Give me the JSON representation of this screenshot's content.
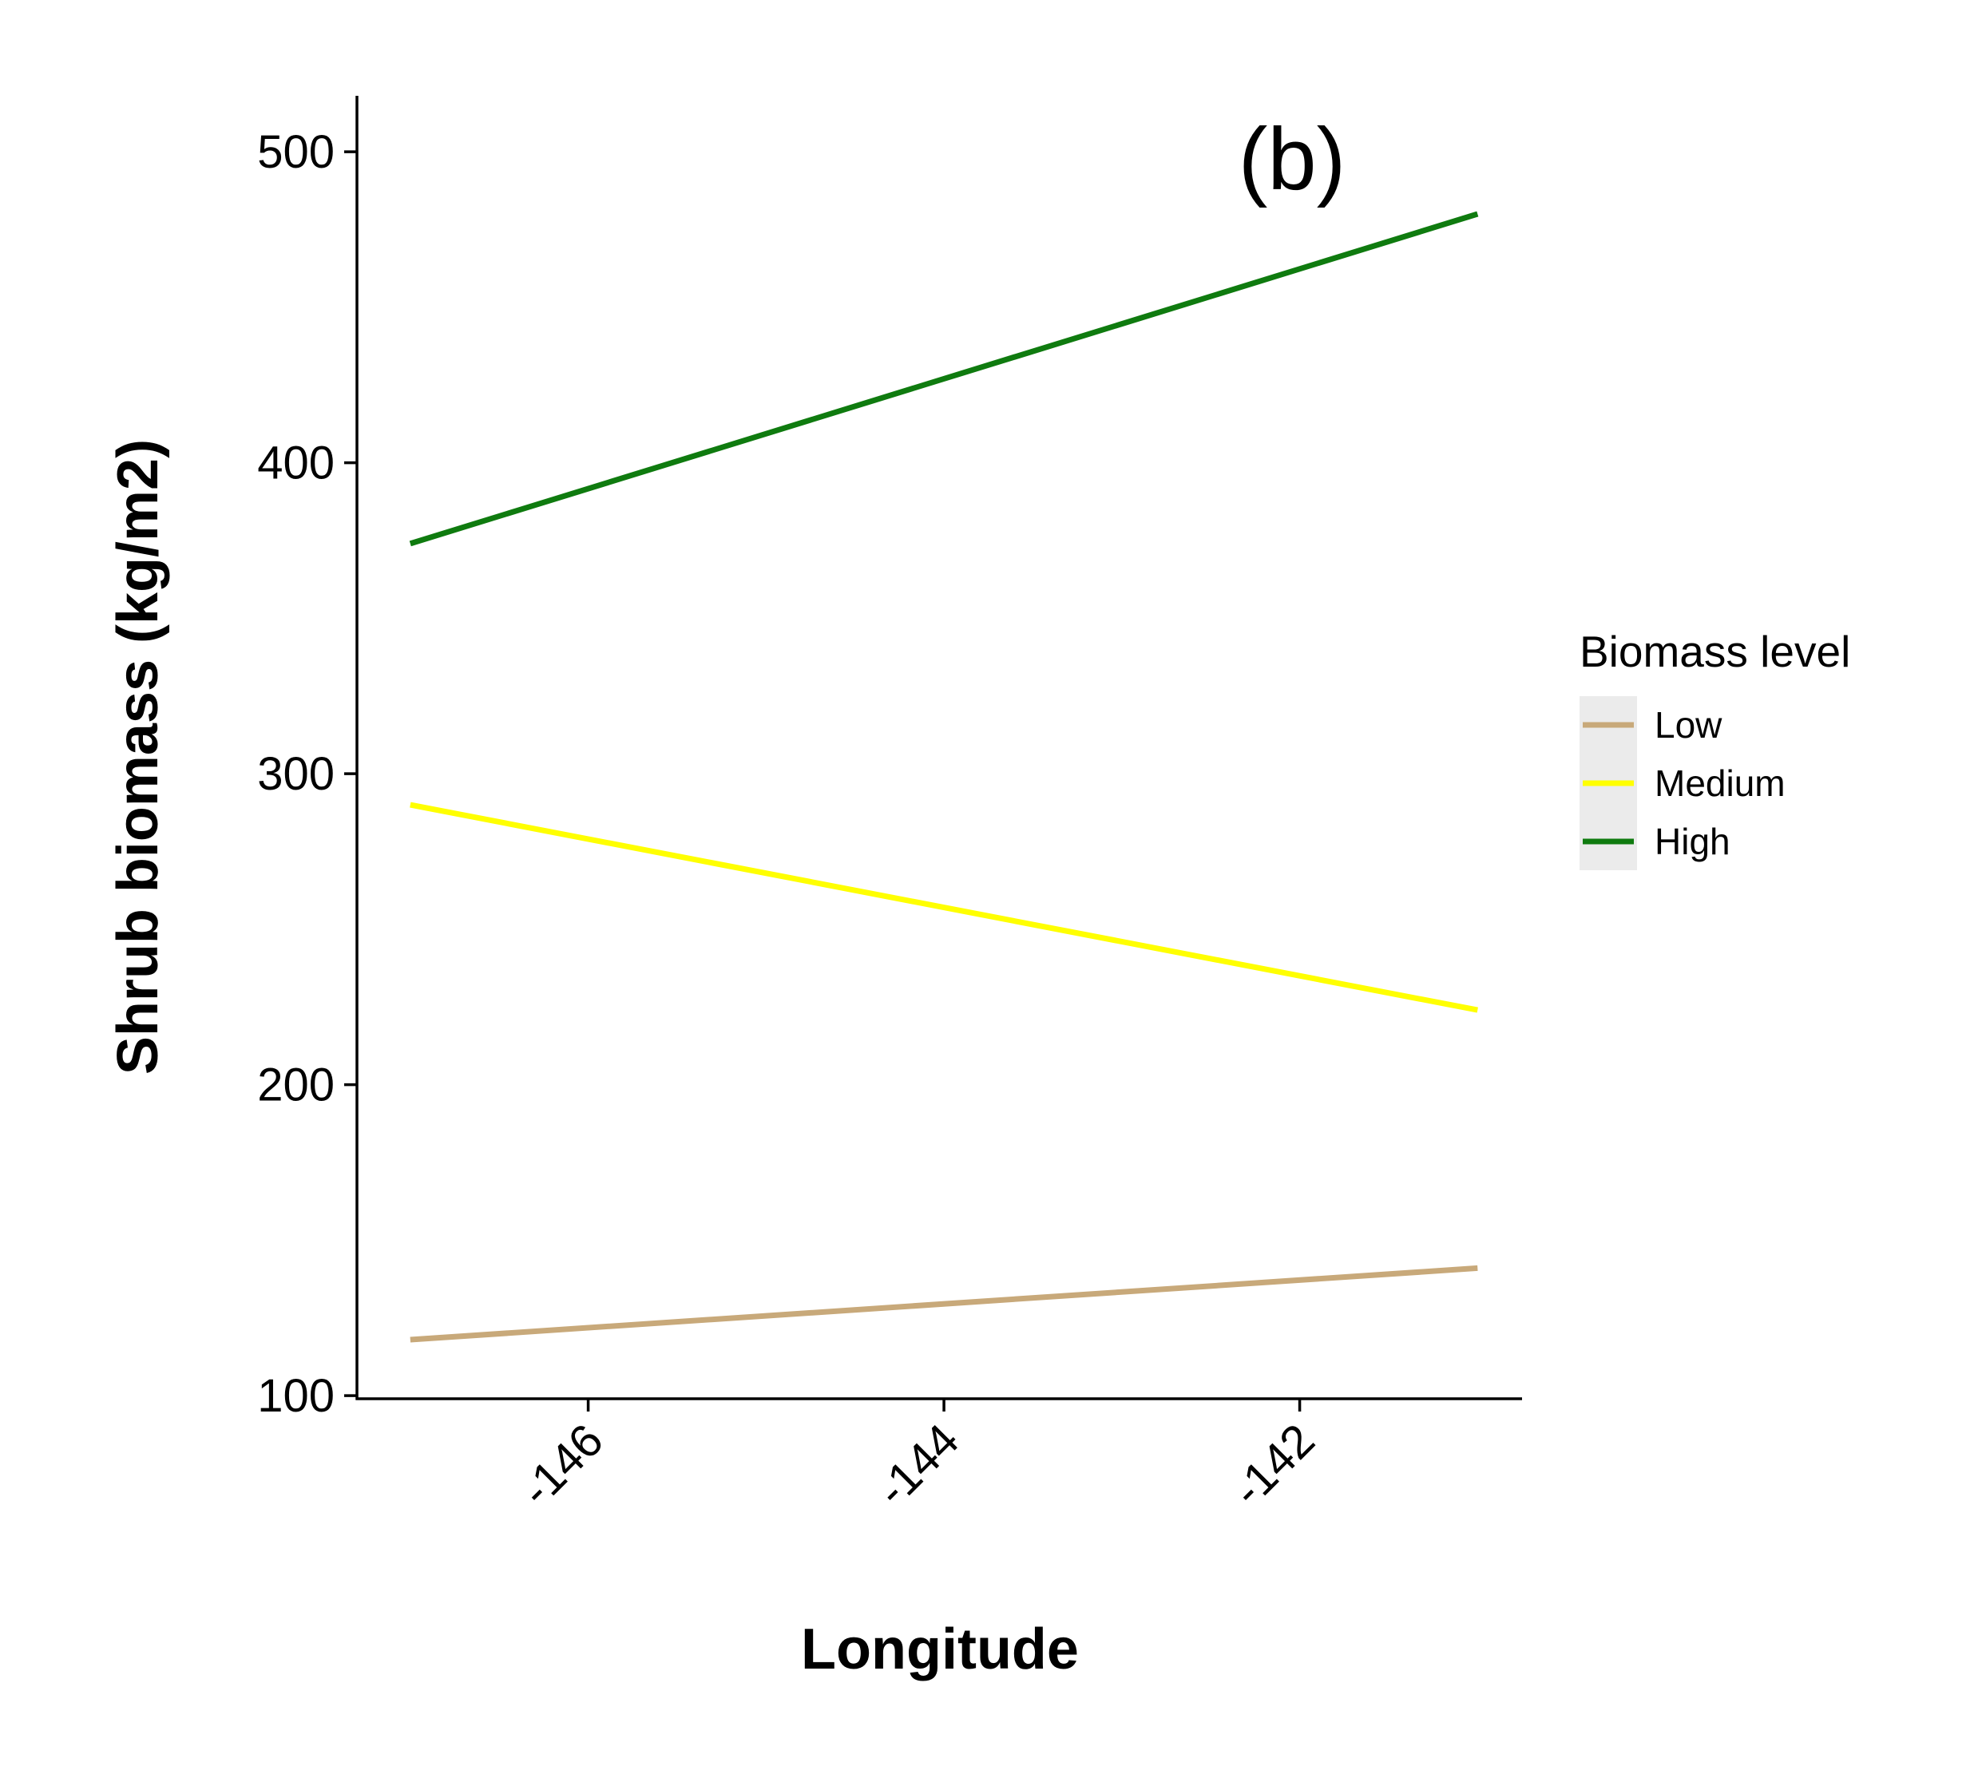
{
  "chart_data": {
    "type": "line",
    "panel_label": "(b)",
    "xlabel": "Longitude",
    "ylabel": "Shrub biomass (kg/m2)",
    "xlim": [
      -147.3,
      -140.75
    ],
    "ylim": [
      99,
      518
    ],
    "x_ticks": [
      -146,
      -144,
      -142
    ],
    "x_tick_labels": [
      "-146",
      "-144",
      "-142"
    ],
    "y_ticks": [
      100,
      200,
      300,
      400,
      500
    ],
    "y_tick_labels": [
      "100",
      "200",
      "300",
      "400",
      "500"
    ],
    "grid": false,
    "legend": {
      "title": "Biomass level",
      "position": "right",
      "entries": [
        "Low",
        "Medium",
        "High"
      ]
    },
    "series": [
      {
        "name": "Low",
        "color": "#C8A97A",
        "x": [
          -147.0,
          -141.0
        ],
        "y": [
          118,
          141
        ]
      },
      {
        "name": "Medium",
        "color": "#FFFF00",
        "x": [
          -147.0,
          -141.0
        ],
        "y": [
          290,
          224
        ]
      },
      {
        "name": "High",
        "color": "#0F7B0F",
        "x": [
          -147.0,
          -141.0
        ],
        "y": [
          374,
          480
        ]
      }
    ]
  }
}
